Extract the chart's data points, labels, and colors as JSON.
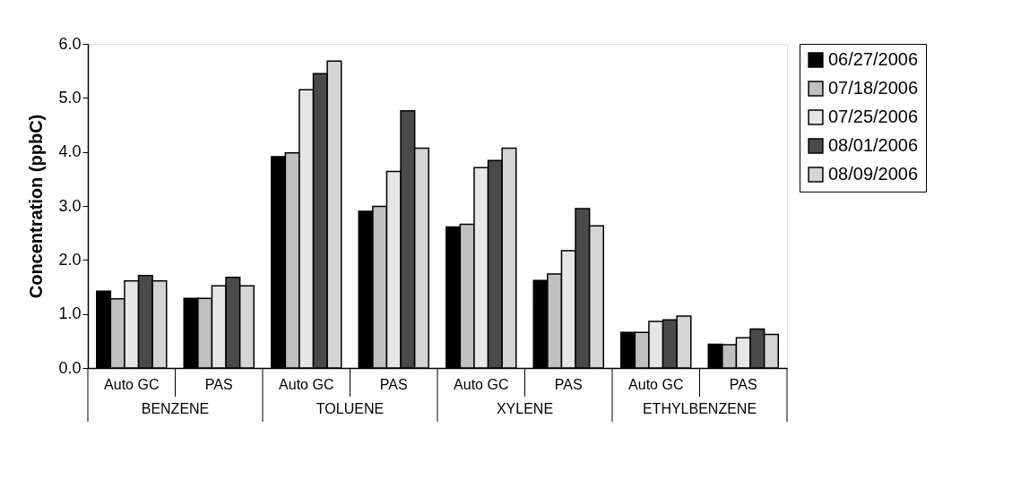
{
  "chart_data": {
    "type": "bar",
    "ylabel": "Concentration (ppbC)",
    "categories": [
      "Auto GC",
      "PAS",
      "Auto GC",
      "PAS",
      "Auto GC",
      "PAS",
      "Auto GC",
      "PAS"
    ],
    "annotations": [
      "BENZENE",
      "TOLUENE",
      "XYLENE",
      "ETHYLBENZENE"
    ],
    "series": [
      {
        "name": "06/27/2006",
        "color": "#000000",
        "values": [
          1.42,
          1.29,
          3.91,
          2.9,
          2.61,
          1.62,
          0.66,
          0.44
        ]
      },
      {
        "name": "07/18/2006",
        "color": "#c0c0c0",
        "values": [
          1.28,
          1.29,
          3.98,
          2.99,
          2.66,
          1.74,
          0.66,
          0.43
        ]
      },
      {
        "name": "07/25/2006",
        "color": "#e6e6e6",
        "values": [
          1.61,
          1.52,
          5.15,
          3.64,
          3.71,
          2.17,
          0.86,
          0.56
        ]
      },
      {
        "name": "08/01/2006",
        "color": "#4a4a4a",
        "values": [
          1.71,
          1.68,
          5.45,
          4.76,
          3.84,
          2.95,
          0.89,
          0.72
        ]
      },
      {
        "name": "08/09/2006",
        "color": "#d4d4d4",
        "values": [
          1.61,
          1.52,
          5.68,
          4.07,
          4.07,
          2.63,
          0.96,
          0.62
        ]
      }
    ],
    "ylim": [
      0,
      6
    ],
    "yticks": [
      {
        "value": 0,
        "label": "0.0"
      },
      {
        "value": 1,
        "label": "1.0"
      },
      {
        "value": 2,
        "label": "2.0"
      },
      {
        "value": 3,
        "label": "3.0"
      },
      {
        "value": 4,
        "label": "4.0"
      },
      {
        "value": 5,
        "label": "5.0"
      },
      {
        "value": 6,
        "label": "6.0"
      }
    ],
    "grid": false,
    "legend": "right"
  }
}
